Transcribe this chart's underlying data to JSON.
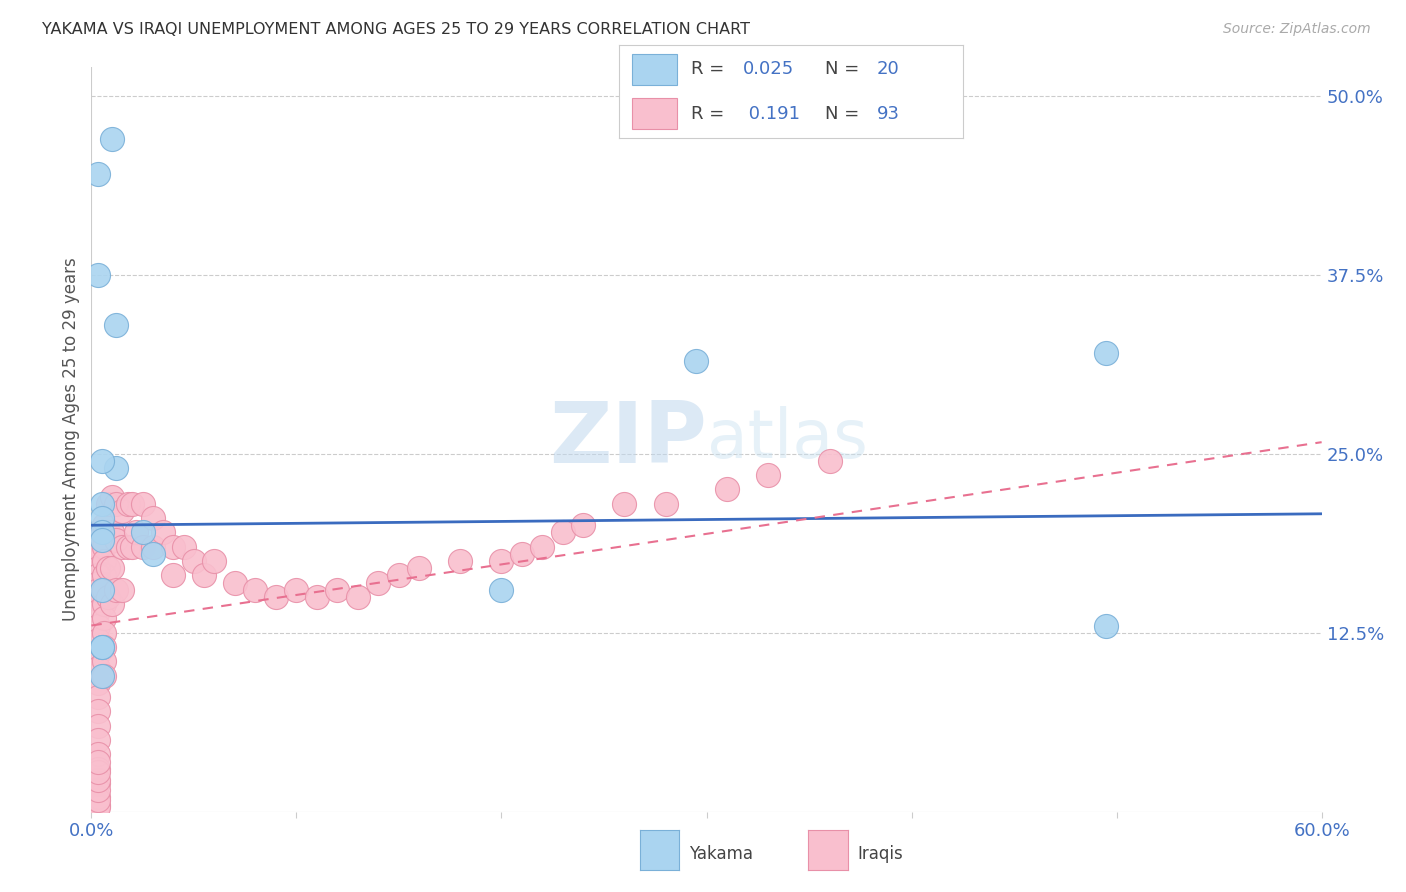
{
  "title": "YAKAMA VS IRAQI UNEMPLOYMENT AMONG AGES 25 TO 29 YEARS CORRELATION CHART",
  "source": "Source: ZipAtlas.com",
  "ylabel": "Unemployment Among Ages 25 to 29 years",
  "xlim": [
    0.0,
    0.6
  ],
  "ylim": [
    0.0,
    0.52
  ],
  "background_color": "#ffffff",
  "yakama_color": "#aad4f0",
  "iraqi_color": "#f9bfce",
  "yakama_edge": "#7ab0d8",
  "iraqi_edge": "#e890a8",
  "trendline_yakama_color": "#3a6bbf",
  "trendline_iraqi_color": "#e87090",
  "grid_color": "#cccccc",
  "title_color": "#333333",
  "axis_label_color": "#555555",
  "tick_color": "#4472c4",
  "yakama_trend_x": [
    0.0,
    0.6
  ],
  "yakama_trend_y": [
    0.2,
    0.208
  ],
  "iraqi_trend_x": [
    0.0,
    0.6
  ],
  "iraqi_trend_y": [
    0.13,
    0.258
  ],
  "yakama_x": [
    0.003,
    0.01,
    0.003,
    0.012,
    0.012,
    0.005,
    0.005,
    0.005,
    0.005,
    0.005,
    0.025,
    0.03,
    0.295,
    0.2,
    0.495,
    0.495,
    0.005,
    0.005,
    0.005,
    0.005
  ],
  "yakama_y": [
    0.445,
    0.47,
    0.375,
    0.34,
    0.24,
    0.245,
    0.215,
    0.205,
    0.195,
    0.19,
    0.195,
    0.18,
    0.315,
    0.155,
    0.32,
    0.13,
    0.155,
    0.115,
    0.095,
    0.115
  ],
  "iraqi_x": [
    0.003,
    0.003,
    0.003,
    0.003,
    0.003,
    0.003,
    0.003,
    0.003,
    0.003,
    0.003,
    0.003,
    0.003,
    0.003,
    0.003,
    0.003,
    0.003,
    0.003,
    0.003,
    0.003,
    0.003,
    0.003,
    0.003,
    0.003,
    0.003,
    0.003,
    0.003,
    0.003,
    0.003,
    0.003,
    0.003,
    0.006,
    0.006,
    0.006,
    0.006,
    0.006,
    0.006,
    0.006,
    0.006,
    0.006,
    0.006,
    0.006,
    0.006,
    0.008,
    0.008,
    0.008,
    0.008,
    0.01,
    0.01,
    0.01,
    0.01,
    0.012,
    0.012,
    0.012,
    0.015,
    0.015,
    0.015,
    0.018,
    0.018,
    0.02,
    0.02,
    0.022,
    0.025,
    0.025,
    0.03,
    0.03,
    0.035,
    0.04,
    0.04,
    0.045,
    0.05,
    0.055,
    0.06,
    0.07,
    0.08,
    0.09,
    0.1,
    0.11,
    0.12,
    0.13,
    0.14,
    0.15,
    0.16,
    0.18,
    0.2,
    0.21,
    0.22,
    0.23,
    0.24,
    0.26,
    0.28,
    0.31,
    0.33,
    0.36
  ],
  "iraqi_y": [
    0.195,
    0.19,
    0.185,
    0.18,
    0.17,
    0.165,
    0.16,
    0.155,
    0.148,
    0.14,
    0.13,
    0.12,
    0.11,
    0.1,
    0.09,
    0.08,
    0.07,
    0.06,
    0.05,
    0.04,
    0.03,
    0.02,
    0.01,
    0.005,
    0.003,
    0.008,
    0.015,
    0.022,
    0.028,
    0.035,
    0.2,
    0.192,
    0.185,
    0.175,
    0.165,
    0.155,
    0.145,
    0.135,
    0.125,
    0.115,
    0.105,
    0.095,
    0.215,
    0.195,
    0.17,
    0.15,
    0.22,
    0.195,
    0.17,
    0.145,
    0.215,
    0.19,
    0.155,
    0.21,
    0.185,
    0.155,
    0.215,
    0.185,
    0.215,
    0.185,
    0.195,
    0.215,
    0.185,
    0.205,
    0.185,
    0.195,
    0.185,
    0.165,
    0.185,
    0.175,
    0.165,
    0.175,
    0.16,
    0.155,
    0.15,
    0.155,
    0.15,
    0.155,
    0.15,
    0.16,
    0.165,
    0.17,
    0.175,
    0.175,
    0.18,
    0.185,
    0.195,
    0.2,
    0.215,
    0.215,
    0.225,
    0.235,
    0.245
  ]
}
